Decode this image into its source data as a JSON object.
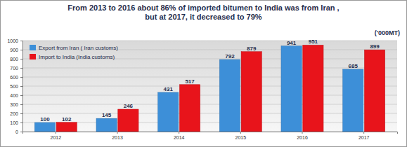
{
  "chart_data": {
    "type": "bar",
    "title": [
      "From 2013 to 2016 about 86% of imported bitumen to India was from Iran ,",
      "but at 2017, it decreased to 79%"
    ],
    "y_label": "('000MT)",
    "categories": [
      "2012",
      "2013",
      "2014",
      "2015",
      "2016",
      "2017"
    ],
    "series": [
      {
        "name": "Export from Iran ( Iran customs)",
        "color": "#3d8fd8",
        "values": [
          100,
          145,
          431,
          792,
          941,
          685
        ]
      },
      {
        "name": "Import to India (India customs)",
        "color": "#e8141b",
        "values": [
          102,
          246,
          517,
          879,
          951,
          899
        ]
      }
    ],
    "ylim": [
      0,
      1000
    ],
    "yticks": [
      0,
      100,
      200,
      300,
      400,
      500,
      600,
      700,
      800,
      900,
      1000
    ],
    "grid": true,
    "legend": "top-left",
    "data_labels": true
  }
}
